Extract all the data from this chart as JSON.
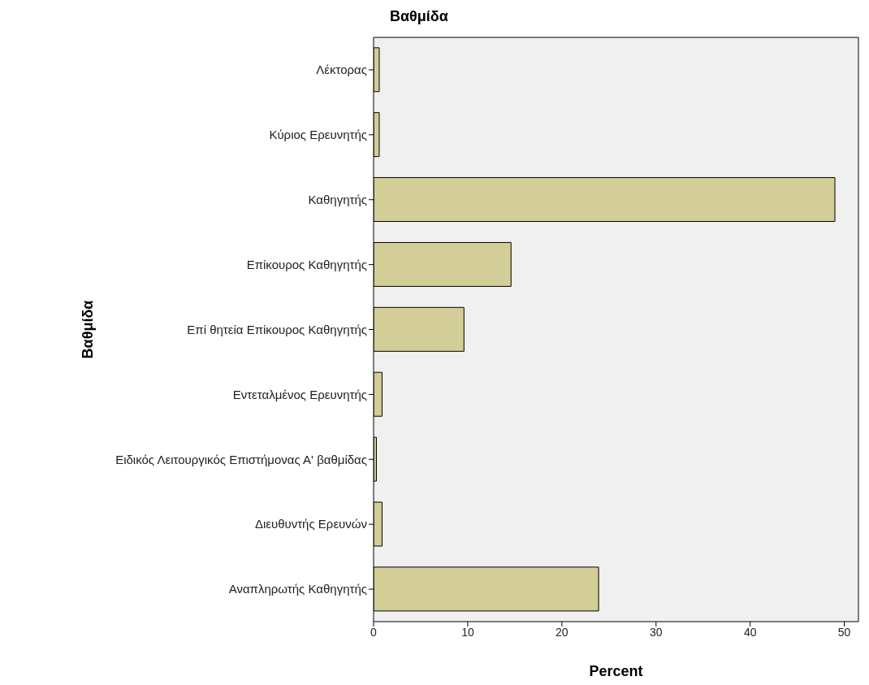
{
  "chart_data": {
    "type": "bar",
    "orientation": "horizontal",
    "title": "Βαθμίδα",
    "xlabel": "Percent",
    "ylabel": "Βαθμίδα",
    "categories": [
      "Λέκτορας",
      "Κύριος Ερευνητής",
      "Καθηγητής",
      "Επίκουρος Καθηγητής",
      "Επί θητεία Επίκουρος Καθηγητής",
      "Εντεταλμένος Ερευνητής",
      "Ειδικός Λειτουργικός Επιστήμονας Α' βαθμίδας",
      "Διευθυντής Ερευνών",
      "Αναπληρωτής Καθηγητής"
    ],
    "values": [
      0.6,
      0.6,
      49,
      14.6,
      9.6,
      0.9,
      0.3,
      0.9,
      23.9
    ],
    "color": "#d3ce97",
    "xlim": [
      0,
      51.5
    ],
    "xticks": [
      0,
      10,
      20,
      30,
      40,
      50
    ],
    "grid": false
  }
}
